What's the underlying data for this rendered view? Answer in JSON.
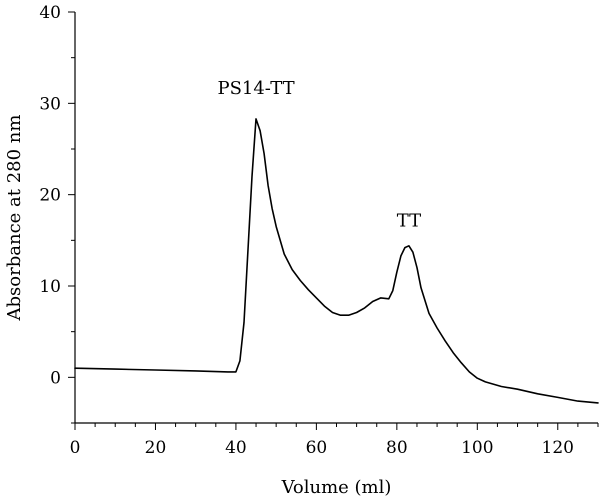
{
  "chart_data": {
    "type": "line",
    "title": "",
    "xlabel": "Volume (ml)",
    "ylabel": "Absorbance at 280 nm",
    "xlim": [
      0,
      130
    ],
    "ylim": [
      -5,
      40
    ],
    "x_ticks": [
      0,
      20,
      40,
      60,
      80,
      100,
      120
    ],
    "y_ticks": [
      0,
      10,
      20,
      30,
      40
    ],
    "x_minor_step": 5,
    "y_minor_step": 5,
    "grid": false,
    "legend": "none",
    "annotations": [
      {
        "text": "PS14-TT",
        "x": 45,
        "y": 31
      },
      {
        "text": "TT",
        "x": 83,
        "y": 16.5
      }
    ],
    "series": [
      {
        "color": "#000000",
        "points": [
          [
            0,
            1.0
          ],
          [
            10,
            0.9
          ],
          [
            20,
            0.8
          ],
          [
            30,
            0.7
          ],
          [
            38,
            0.6
          ],
          [
            40,
            0.6
          ],
          [
            41,
            1.8
          ],
          [
            42,
            6.0
          ],
          [
            43,
            14.0
          ],
          [
            44,
            22.0
          ],
          [
            45,
            28.3
          ],
          [
            46,
            27.0
          ],
          [
            47,
            24.5
          ],
          [
            48,
            21.0
          ],
          [
            49,
            18.5
          ],
          [
            50,
            16.5
          ],
          [
            52,
            13.5
          ],
          [
            54,
            11.8
          ],
          [
            56,
            10.6
          ],
          [
            58,
            9.6
          ],
          [
            60,
            8.7
          ],
          [
            62,
            7.8
          ],
          [
            64,
            7.1
          ],
          [
            66,
            6.8
          ],
          [
            68,
            6.8
          ],
          [
            70,
            7.1
          ],
          [
            72,
            7.6
          ],
          [
            74,
            8.3
          ],
          [
            76,
            8.7
          ],
          [
            78,
            8.6
          ],
          [
            79,
            9.5
          ],
          [
            80,
            11.5
          ],
          [
            81,
            13.3
          ],
          [
            82,
            14.2
          ],
          [
            83,
            14.4
          ],
          [
            84,
            13.7
          ],
          [
            85,
            12.0
          ],
          [
            86,
            9.8
          ],
          [
            88,
            7.0
          ],
          [
            90,
            5.4
          ],
          [
            92,
            4.0
          ],
          [
            94,
            2.7
          ],
          [
            96,
            1.6
          ],
          [
            98,
            0.6
          ],
          [
            100,
            -0.1
          ],
          [
            102,
            -0.5
          ],
          [
            106,
            -1.0
          ],
          [
            110,
            -1.3
          ],
          [
            115,
            -1.8
          ],
          [
            120,
            -2.2
          ],
          [
            125,
            -2.6
          ],
          [
            130,
            -2.8
          ]
        ]
      }
    ]
  }
}
